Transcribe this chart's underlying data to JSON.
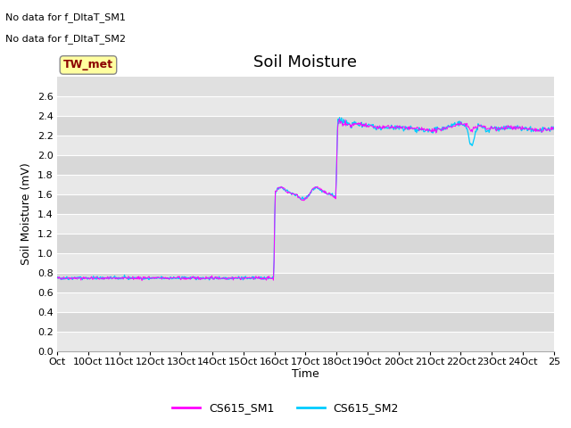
{
  "title": "Soil Moisture",
  "ylabel": "Soil Moisture (mV)",
  "xlabel": "Time",
  "ylim": [
    0.0,
    2.8
  ],
  "yticks": [
    0.0,
    0.2,
    0.4,
    0.6,
    0.8,
    1.0,
    1.2,
    1.4,
    1.6,
    1.8,
    2.0,
    2.2,
    2.4,
    2.6
  ],
  "xtick_labels": [
    "Oct",
    "10Oct",
    "11Oct",
    "12Oct",
    "13Oct",
    "14Oct",
    "15Oct",
    "16Oct",
    "17Oct",
    "18Oct",
    "19Oct",
    "20Oct",
    "21Oct",
    "22Oct",
    "23Oct",
    "24Oct",
    "25"
  ],
  "no_data_text": [
    "No data for f_DltaT_SM1",
    "No data for f_DltaT_SM2"
  ],
  "legend_box_label": "TW_met",
  "legend_box_color": "#8b0000",
  "legend_box_bg": "#ffffa0",
  "legend_box_edge": "#888888",
  "legend_entries": [
    "CS615_SM1",
    "CS615_SM2"
  ],
  "legend_colors": [
    "#ff00ff",
    "#00ccff"
  ],
  "line_sm1_color": "#ff00ff",
  "line_sm2_color": "#00ccff",
  "background_color": "#e0e0e0",
  "grid_color": "#ffffff",
  "title_fontsize": 13,
  "axis_fontsize": 9,
  "tick_fontsize": 8,
  "nodata_fontsize": 8,
  "legend_fontsize": 9
}
